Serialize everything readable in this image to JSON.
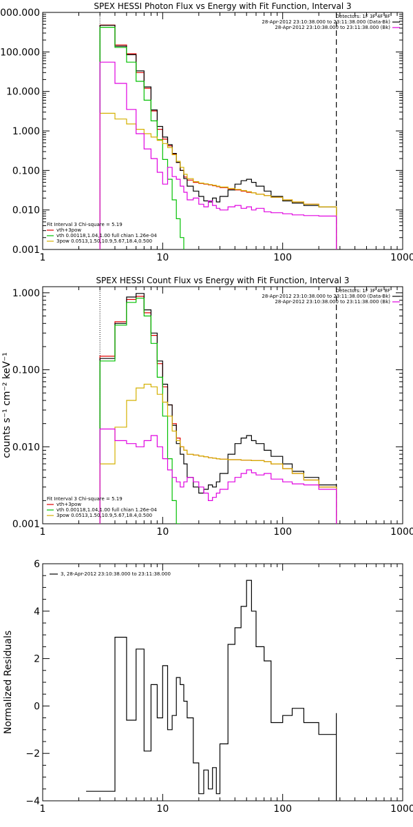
{
  "chart_data": [
    {
      "type": "line",
      "title": "SPEX HESSI Photon Flux vs Energy with Fit Function, Interval 3",
      "xscale": "log",
      "yscale": "log",
      "xlim": [
        1,
        1000
      ],
      "ylim": [
        0.001,
        1000
      ],
      "x_ticks": [
        "1",
        "10",
        "100",
        "1000"
      ],
      "y_ticks": [
        "0.001",
        "0.010",
        "0.100",
        "1.000",
        "10.000",
        "100.000",
        "1000.000"
      ],
      "ylabel": "",
      "legend_top_right": [
        "Detectors: 1F 3F 4F 8F",
        "28-Apr-2012 23:10:38.000 to 23:11:38.000 (Data-Bk)",
        "28-Apr-2012 23:10:38.000 to 23:11:38.000 (Bk)"
      ],
      "legend_bottom_left": [
        "Fit Interval 3   Chi-square = 5.19",
        "vth+3pow",
        "vth 0.00118,1.04,1.00  full chian 1.26e-04",
        "3pow 0.0513,1.50,10.9,5.67,18.4,0.500"
      ],
      "vlines": [
        3,
        280
      ],
      "series": [
        {
          "name": "vth+3pow",
          "color": "#e00000",
          "x": [
            3,
            4,
            5,
            6,
            7,
            8,
            9,
            10,
            11,
            12,
            13,
            14,
            15,
            16,
            18,
            20,
            22,
            24,
            26,
            28,
            30,
            35,
            40,
            45,
            50,
            55,
            60,
            70,
            80,
            100,
            120,
            150,
            200,
            280
          ],
          "y": [
            480,
            150,
            90,
            30,
            12,
            3.2,
            1.1,
            0.62,
            0.42,
            0.26,
            0.16,
            0.1,
            0.068,
            0.057,
            0.05,
            0.047,
            0.045,
            0.043,
            0.041,
            0.039,
            0.037,
            0.034,
            0.032,
            0.03,
            0.028,
            0.027,
            0.025,
            0.023,
            0.021,
            0.018,
            0.016,
            0.014,
            0.012,
            0.01
          ]
        },
        {
          "name": "Data-Bk",
          "color": "#000000",
          "x": [
            3,
            4,
            5,
            6,
            7,
            8,
            9,
            10,
            11,
            12,
            13,
            14,
            15,
            16,
            18,
            20,
            22,
            24,
            26,
            28,
            30,
            35,
            40,
            45,
            50,
            55,
            60,
            70,
            80,
            100,
            120,
            150,
            200,
            280
          ],
          "y": [
            470,
            140,
            85,
            33,
            13,
            3.4,
            1.3,
            0.7,
            0.45,
            0.27,
            0.16,
            0.1,
            0.062,
            0.04,
            0.03,
            0.022,
            0.017,
            0.016,
            0.02,
            0.016,
            0.022,
            0.032,
            0.045,
            0.055,
            0.06,
            0.05,
            0.04,
            0.03,
            0.022,
            0.017,
            0.015,
            0.013,
            0.012,
            0.011
          ]
        },
        {
          "name": "vth",
          "color": "#00c000",
          "x": [
            3,
            4,
            5,
            6,
            7,
            8,
            9,
            10,
            11,
            12,
            13,
            14,
            15
          ],
          "y": [
            420,
            130,
            55,
            18,
            6,
            1.8,
            0.6,
            0.19,
            0.06,
            0.018,
            0.006,
            0.002,
            0.001
          ]
        },
        {
          "name": "3pow",
          "color": "#d4b000",
          "x": [
            3,
            4,
            5,
            6,
            7,
            8,
            9,
            10,
            11,
            12,
            13,
            14,
            15,
            16,
            18,
            20,
            22,
            24,
            26,
            28,
            30,
            35,
            40,
            45,
            50,
            55,
            60,
            70,
            80,
            100,
            120,
            150,
            200,
            280
          ],
          "y": [
            2.8,
            2.0,
            1.5,
            1.1,
            0.85,
            0.7,
            0.58,
            0.48,
            0.38,
            0.25,
            0.17,
            0.12,
            0.08,
            0.062,
            0.052,
            0.048,
            0.046,
            0.044,
            0.042,
            0.04,
            0.038,
            0.035,
            0.033,
            0.031,
            0.029,
            0.027,
            0.025,
            0.023,
            0.021,
            0.018,
            0.016,
            0.014,
            0.012,
            0.01
          ]
        },
        {
          "name": "Bk",
          "color": "#e000e0",
          "x": [
            3,
            4,
            5,
            6,
            7,
            8,
            9,
            10,
            11,
            12,
            13,
            14,
            15,
            16,
            18,
            20,
            22,
            24,
            26,
            28,
            30,
            35,
            40,
            45,
            50,
            55,
            60,
            70,
            80,
            100,
            120,
            150,
            200,
            280
          ],
          "y": [
            55,
            16,
            3.5,
            0.85,
            0.35,
            0.2,
            0.09,
            0.045,
            0.12,
            0.07,
            0.06,
            0.04,
            0.028,
            0.018,
            0.02,
            0.014,
            0.012,
            0.017,
            0.013,
            0.011,
            0.01,
            0.012,
            0.013,
            0.011,
            0.012,
            0.01,
            0.011,
            0.009,
            0.0085,
            0.008,
            0.0075,
            0.0072,
            0.007,
            0.006
          ]
        }
      ]
    },
    {
      "type": "line",
      "title": "SPEX HESSI Count Flux vs Energy with Fit Function, Interval 3",
      "xscale": "log",
      "yscale": "log",
      "xlim": [
        1,
        1000
      ],
      "ylim": [
        0.001,
        1.2
      ],
      "x_ticks": [
        "1",
        "10",
        "100",
        "1000"
      ],
      "y_ticks": [
        "0.001",
        "0.010",
        "0.100",
        "1.000"
      ],
      "ylabel": "counts s⁻¹ cm⁻² keV⁻¹",
      "legend_top_right": [
        "Detectors: 1F 3F 4F 8F",
        "28-Apr-2012 23:10:38.000 to 23:11:38.000 (Data-Bk)",
        "28-Apr-2012 23:10:38.000 to 23:11:38.000 (Bk)"
      ],
      "legend_bottom_left": [
        "Fit Interval 3   Chi-square = 5.19",
        "vth+3pow",
        "vth 0.00118,1.04,1.00  full chian 1.26e-04",
        "3pow 0.0513,1.50,10.9,5.67,18.4,0.500"
      ],
      "vlines": [
        3,
        280
      ],
      "series": [
        {
          "name": "vth+3pow",
          "color": "#e00000",
          "x": [
            3,
            4,
            5,
            6,
            7,
            8,
            9,
            10,
            11,
            12,
            13,
            14,
            15,
            16,
            18,
            20,
            22,
            24,
            26,
            28,
            30,
            35,
            40,
            45,
            50,
            55,
            60,
            70,
            80,
            100,
            120,
            150,
            200,
            280
          ],
          "y": [
            0.15,
            0.42,
            0.82,
            0.9,
            0.55,
            0.28,
            0.12,
            0.06,
            0.035,
            0.02,
            0.013,
            0.01,
            0.009,
            0.008,
            0.0078,
            0.0076,
            0.0074,
            0.0072,
            0.0071,
            0.007,
            0.0069,
            0.0068,
            0.0068,
            0.0067,
            0.0067,
            0.0066,
            0.0066,
            0.0064,
            0.006,
            0.0052,
            0.0045,
            0.0037,
            0.003,
            0.0024
          ]
        },
        {
          "name": "Data-Bk",
          "color": "#000000",
          "x": [
            3,
            4,
            5,
            6,
            7,
            8,
            9,
            10,
            11,
            12,
            13,
            14,
            15,
            16,
            18,
            20,
            22,
            24,
            26,
            28,
            30,
            35,
            40,
            45,
            50,
            55,
            60,
            70,
            80,
            100,
            120,
            150,
            200,
            280
          ],
          "y": [
            0.14,
            0.4,
            0.88,
            0.98,
            0.6,
            0.3,
            0.13,
            0.065,
            0.035,
            0.019,
            0.011,
            0.008,
            0.006,
            0.004,
            0.003,
            0.0025,
            0.0028,
            0.0032,
            0.003,
            0.0035,
            0.0045,
            0.008,
            0.011,
            0.013,
            0.014,
            0.012,
            0.011,
            0.009,
            0.0075,
            0.006,
            0.0048,
            0.004,
            0.0032,
            0.0028
          ]
        },
        {
          "name": "vth",
          "color": "#00c000",
          "x": [
            3,
            4,
            5,
            6,
            7,
            8,
            9,
            10,
            11,
            12,
            13,
            14
          ],
          "y": [
            0.13,
            0.38,
            0.75,
            0.85,
            0.5,
            0.22,
            0.08,
            0.025,
            0.007,
            0.002,
            0.001,
            0.001
          ]
        },
        {
          "name": "3pow",
          "color": "#d4b000",
          "x": [
            3,
            4,
            5,
            6,
            7,
            8,
            9,
            10,
            11,
            12,
            13,
            14,
            15,
            16,
            18,
            20,
            22,
            24,
            26,
            28,
            30,
            35,
            40,
            45,
            50,
            55,
            60,
            70,
            80,
            100,
            120,
            150,
            200,
            280
          ],
          "y": [
            0.006,
            0.018,
            0.04,
            0.058,
            0.065,
            0.06,
            0.048,
            0.038,
            0.025,
            0.016,
            0.012,
            0.01,
            0.009,
            0.008,
            0.0078,
            0.0076,
            0.0074,
            0.0072,
            0.0071,
            0.007,
            0.0069,
            0.0068,
            0.0068,
            0.0067,
            0.0067,
            0.0066,
            0.0066,
            0.0064,
            0.006,
            0.0052,
            0.0045,
            0.0037,
            0.003,
            0.0024
          ]
        },
        {
          "name": "Bk",
          "color": "#e000e0",
          "x": [
            3,
            4,
            5,
            6,
            7,
            8,
            9,
            10,
            11,
            12,
            13,
            14,
            15,
            16,
            18,
            20,
            22,
            24,
            26,
            28,
            30,
            35,
            40,
            45,
            50,
            55,
            60,
            70,
            80,
            100,
            120,
            150,
            200,
            280
          ],
          "y": [
            0.017,
            0.012,
            0.011,
            0.01,
            0.012,
            0.014,
            0.01,
            0.007,
            0.005,
            0.004,
            0.0035,
            0.003,
            0.0035,
            0.004,
            0.0035,
            0.003,
            0.0025,
            0.002,
            0.0022,
            0.0025,
            0.0028,
            0.0035,
            0.004,
            0.0045,
            0.005,
            0.0046,
            0.0043,
            0.0045,
            0.0038,
            0.0035,
            0.0033,
            0.0032,
            0.0028,
            0.0024
          ]
        }
      ]
    },
    {
      "type": "line",
      "title": "",
      "xscale": "log",
      "yscale": "linear",
      "xlim": [
        1,
        1000
      ],
      "ylim": [
        -4,
        6
      ],
      "x_ticks": [
        "1",
        "10",
        "100",
        "1000"
      ],
      "y_ticks": [
        "−4",
        "−2",
        "0",
        "2",
        "4",
        "6"
      ],
      "ylabel": "Normalized Residuals",
      "legend_top_left": [
        "3, 28-Apr-2012 23:10:38.000 to 23:11:38.000"
      ],
      "series": [
        {
          "name": "3, 28-Apr-2012 23:10:38.000 to 23:11:38.000",
          "color": "#000000",
          "x": [
            2.3,
            3,
            4,
            5,
            6,
            7,
            8,
            9,
            10,
            11,
            12,
            13,
            14,
            15,
            16,
            18,
            20,
            22,
            24,
            26,
            28,
            30,
            35,
            40,
            45,
            50,
            55,
            60,
            70,
            80,
            100,
            120,
            150,
            200,
            280
          ],
          "y": [
            -3.6,
            -3.6,
            2.9,
            -0.6,
            2.4,
            -1.9,
            0.9,
            -0.5,
            1.7,
            -1.0,
            -0.4,
            1.2,
            0.9,
            0.2,
            -0.5,
            -2.4,
            -3.7,
            -2.7,
            -3.5,
            -2.6,
            -3.7,
            -1.6,
            2.6,
            3.3,
            4.2,
            5.3,
            4.0,
            2.5,
            1.9,
            -0.7,
            -0.4,
            -0.1,
            -0.7,
            -1.2,
            -0.3
          ]
        }
      ]
    }
  ]
}
